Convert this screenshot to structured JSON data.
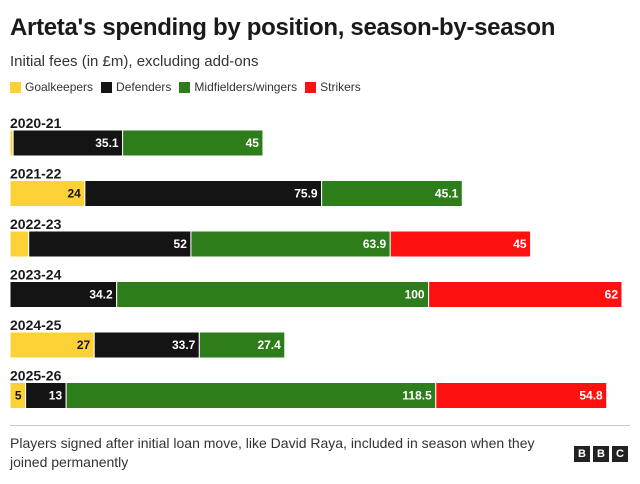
{
  "header": {
    "title": "Arteta's spending by position, season-by-season",
    "subtitle": "Initial fees (in £m), excluding add-ons"
  },
  "legend": [
    {
      "label": "Goalkeepers",
      "color": "#fcd135"
    },
    {
      "label": "Defenders",
      "color": "#141414"
    },
    {
      "label": "Midfielders/wingers",
      "color": "#2e7d1b"
    },
    {
      "label": "Strikers",
      "color": "#ff1010"
    }
  ],
  "chart_data": {
    "type": "bar",
    "orientation": "horizontal",
    "stacked": true,
    "categories": [
      "2020-21",
      "2021-22",
      "2022-23",
      "2023-24",
      "2024-25",
      "2025-26"
    ],
    "series": [
      {
        "name": "Goalkeepers",
        "color": "#fcd135",
        "values": [
          1,
          24,
          6,
          0,
          27,
          5
        ],
        "labels": [
          "",
          "24",
          "",
          "",
          "27",
          "5"
        ]
      },
      {
        "name": "Defenders",
        "color": "#141414",
        "values": [
          35.1,
          75.9,
          52,
          34.2,
          33.7,
          13
        ],
        "labels": [
          "35.1",
          "75.9",
          "52",
          "34.2",
          "33.7",
          "13"
        ]
      },
      {
        "name": "Midfielders/wingers",
        "color": "#2e7d1b",
        "values": [
          45,
          45.1,
          63.9,
          100,
          27.4,
          118.5
        ],
        "labels": [
          "45",
          "45.1",
          "63.9",
          "100",
          "27.4",
          "118.5"
        ]
      },
      {
        "name": "Strikers",
        "color": "#ff1010",
        "values": [
          0,
          0,
          45,
          62,
          0,
          54.8
        ],
        "labels": [
          "",
          "",
          "45",
          "62",
          "",
          "54.8"
        ]
      }
    ],
    "label_colors": [
      "#141414",
      "#ffffff",
      "#ffffff",
      "#ffffff"
    ],
    "xlim": [
      0,
      196.2
    ],
    "grid": false,
    "legend_position": "top-left"
  },
  "footer": {
    "note": "Players signed after initial loan move, like David Raya, included in season when they joined permanently",
    "logo": [
      "B",
      "B",
      "C"
    ]
  }
}
